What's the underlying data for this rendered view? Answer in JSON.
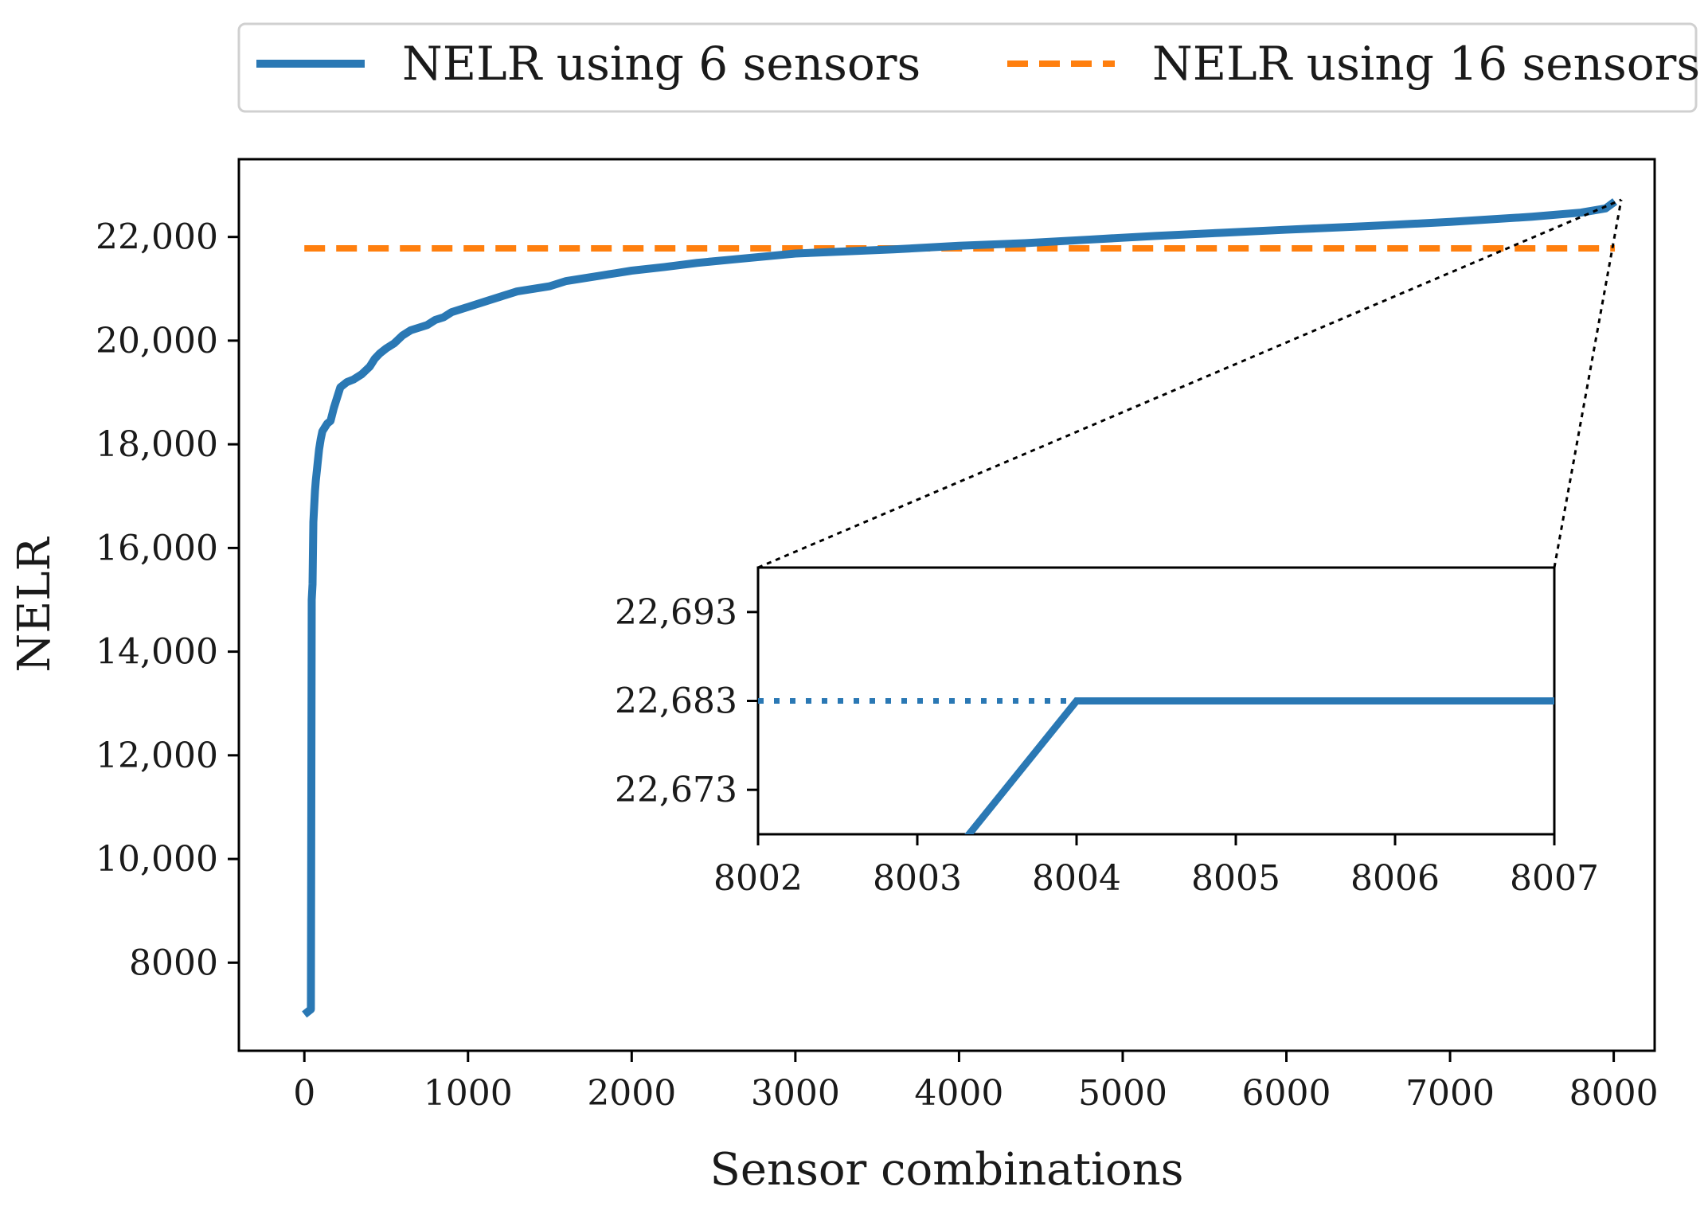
{
  "chart_data": {
    "type": "line",
    "xlabel": "Sensor combinations",
    "ylabel": "NELR",
    "xlim": [
      -400,
      8250
    ],
    "ylim": [
      6300,
      23500
    ],
    "xticks": [
      0,
      1000,
      2000,
      3000,
      4000,
      5000,
      6000,
      7000,
      8000
    ],
    "xtick_labels": [
      "0",
      "1000",
      "2000",
      "3000",
      "4000",
      "5000",
      "6000",
      "7000",
      "8000"
    ],
    "yticks": [
      8000,
      10000,
      12000,
      14000,
      16000,
      18000,
      20000,
      22000
    ],
    "ytick_labels": [
      "8000",
      "10,000",
      "12,000",
      "14,000",
      "16,000",
      "18,000",
      "20,000",
      "22,000"
    ],
    "legend_position": "top",
    "series": [
      {
        "name": "NELR using 6 sensors",
        "style": "solid",
        "color": "#2a78b4",
        "x": [
          0,
          20,
          40,
          45,
          50,
          55,
          60,
          65,
          70,
          80,
          90,
          100,
          110,
          120,
          140,
          160,
          180,
          200,
          220,
          240,
          260,
          300,
          350,
          400,
          430,
          460,
          500,
          550,
          600,
          650,
          700,
          750,
          800,
          850,
          900,
          1000,
          1100,
          1200,
          1300,
          1400,
          1500,
          1600,
          1700,
          1800,
          1900,
          2000,
          2200,
          2400,
          2600,
          2800,
          3000,
          3300,
          3600,
          4000,
          4400,
          4800,
          5200,
          5600,
          6000,
          6500,
          7000,
          7500,
          7800,
          7950,
          8007
        ],
        "y": [
          7000,
          7050,
          7100,
          15000,
          15300,
          16500,
          16800,
          17100,
          17300,
          17600,
          17900,
          18100,
          18250,
          18300,
          18400,
          18450,
          18700,
          18900,
          19100,
          19150,
          19200,
          19250,
          19350,
          19500,
          19650,
          19750,
          19850,
          19950,
          20100,
          20200,
          20250,
          20300,
          20400,
          20450,
          20550,
          20650,
          20750,
          20850,
          20950,
          21000,
          21050,
          21150,
          21200,
          21250,
          21300,
          21350,
          21420,
          21500,
          21560,
          21620,
          21680,
          21720,
          21760,
          21830,
          21880,
          21950,
          22020,
          22080,
          22140,
          22210,
          22290,
          22390,
          22470,
          22550,
          22683
        ]
      },
      {
        "name": "NELR using 16 sensors",
        "style": "dashed",
        "color": "#ff7f0e",
        "x": [
          0,
          8007
        ],
        "y": [
          21780,
          21780
        ]
      }
    ],
    "inset": {
      "xlim": [
        8002,
        8007
      ],
      "ylim": [
        22668,
        22698
      ],
      "xticks": [
        8002,
        8003,
        8004,
        8005,
        8006,
        8007
      ],
      "xtick_labels": [
        "8002",
        "8003",
        "8004",
        "8005",
        "8006",
        "8007"
      ],
      "yticks": [
        22673,
        22683,
        22693
      ],
      "ytick_labels": [
        "22,673",
        "22,683",
        "22,693"
      ],
      "solid_x": [
        8003.1,
        8004,
        8007
      ],
      "solid_y": [
        22663,
        22683,
        22683
      ],
      "dotted_x": [
        8002,
        8004
      ],
      "dotted_y": [
        22683,
        22683
      ]
    }
  }
}
